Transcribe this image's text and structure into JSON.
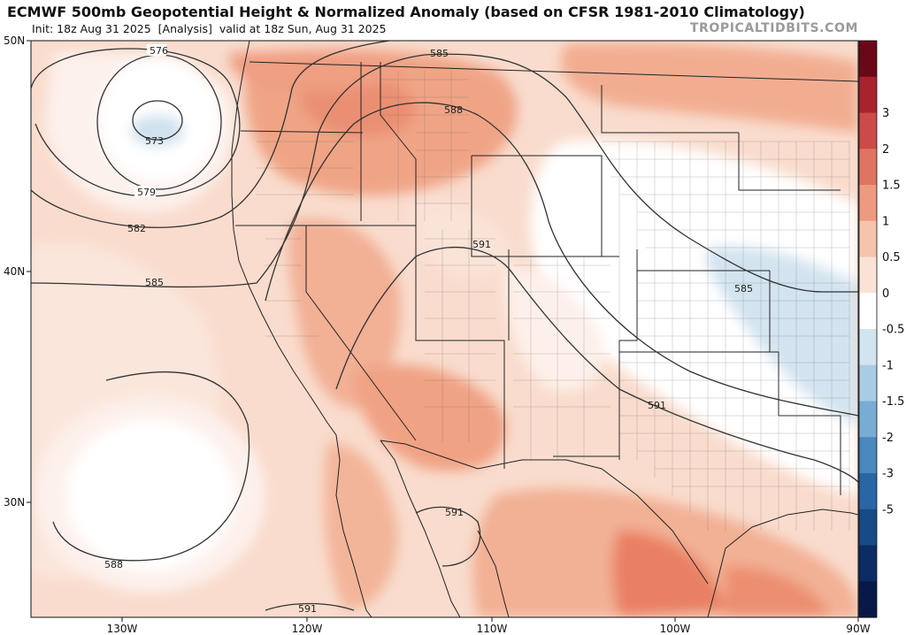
{
  "title": "ECMWF 500mb Geopotential Height & Normalized Anomaly (based on CFSR 1981-2010 Climatology)",
  "subtitle_init": "Init: 18z Aug 31 2025",
  "subtitle_mode": "[Analysis]",
  "subtitle_valid": "valid at 18z Sun, Aug 31 2025",
  "credit": "TROPICALTIDBITS.COM",
  "lat_labels": [
    "50N",
    "40N",
    "30N"
  ],
  "lon_labels": [
    "130W",
    "120W",
    "110W",
    "100W",
    "90W"
  ],
  "chart_data": {
    "type": "map",
    "field": "500mb geopotential height (dam) with normalized anomaly shading",
    "contour_labels": [
      "576",
      "573",
      "579",
      "582",
      "585",
      "588",
      "591",
      "585",
      "588",
      "591",
      "585",
      "591",
      "591"
    ],
    "colorbar": {
      "ticks": [
        "3",
        "2",
        "1.5",
        "1",
        "0.5",
        "0",
        "-0.5",
        "-1",
        "-1.5",
        "-2",
        "-3",
        "-5"
      ],
      "colors": [
        "#6b0818",
        "#a8232e",
        "#cc4b48",
        "#df7460",
        "#ee9a80",
        "#f6c4ac",
        "#fae2d6",
        "#ffffff",
        "#d2e4f0",
        "#a8cce4",
        "#78acd2",
        "#4a88bd",
        "#2a66a6",
        "#184a88",
        "#0c2c66",
        "#081848"
      ]
    }
  }
}
